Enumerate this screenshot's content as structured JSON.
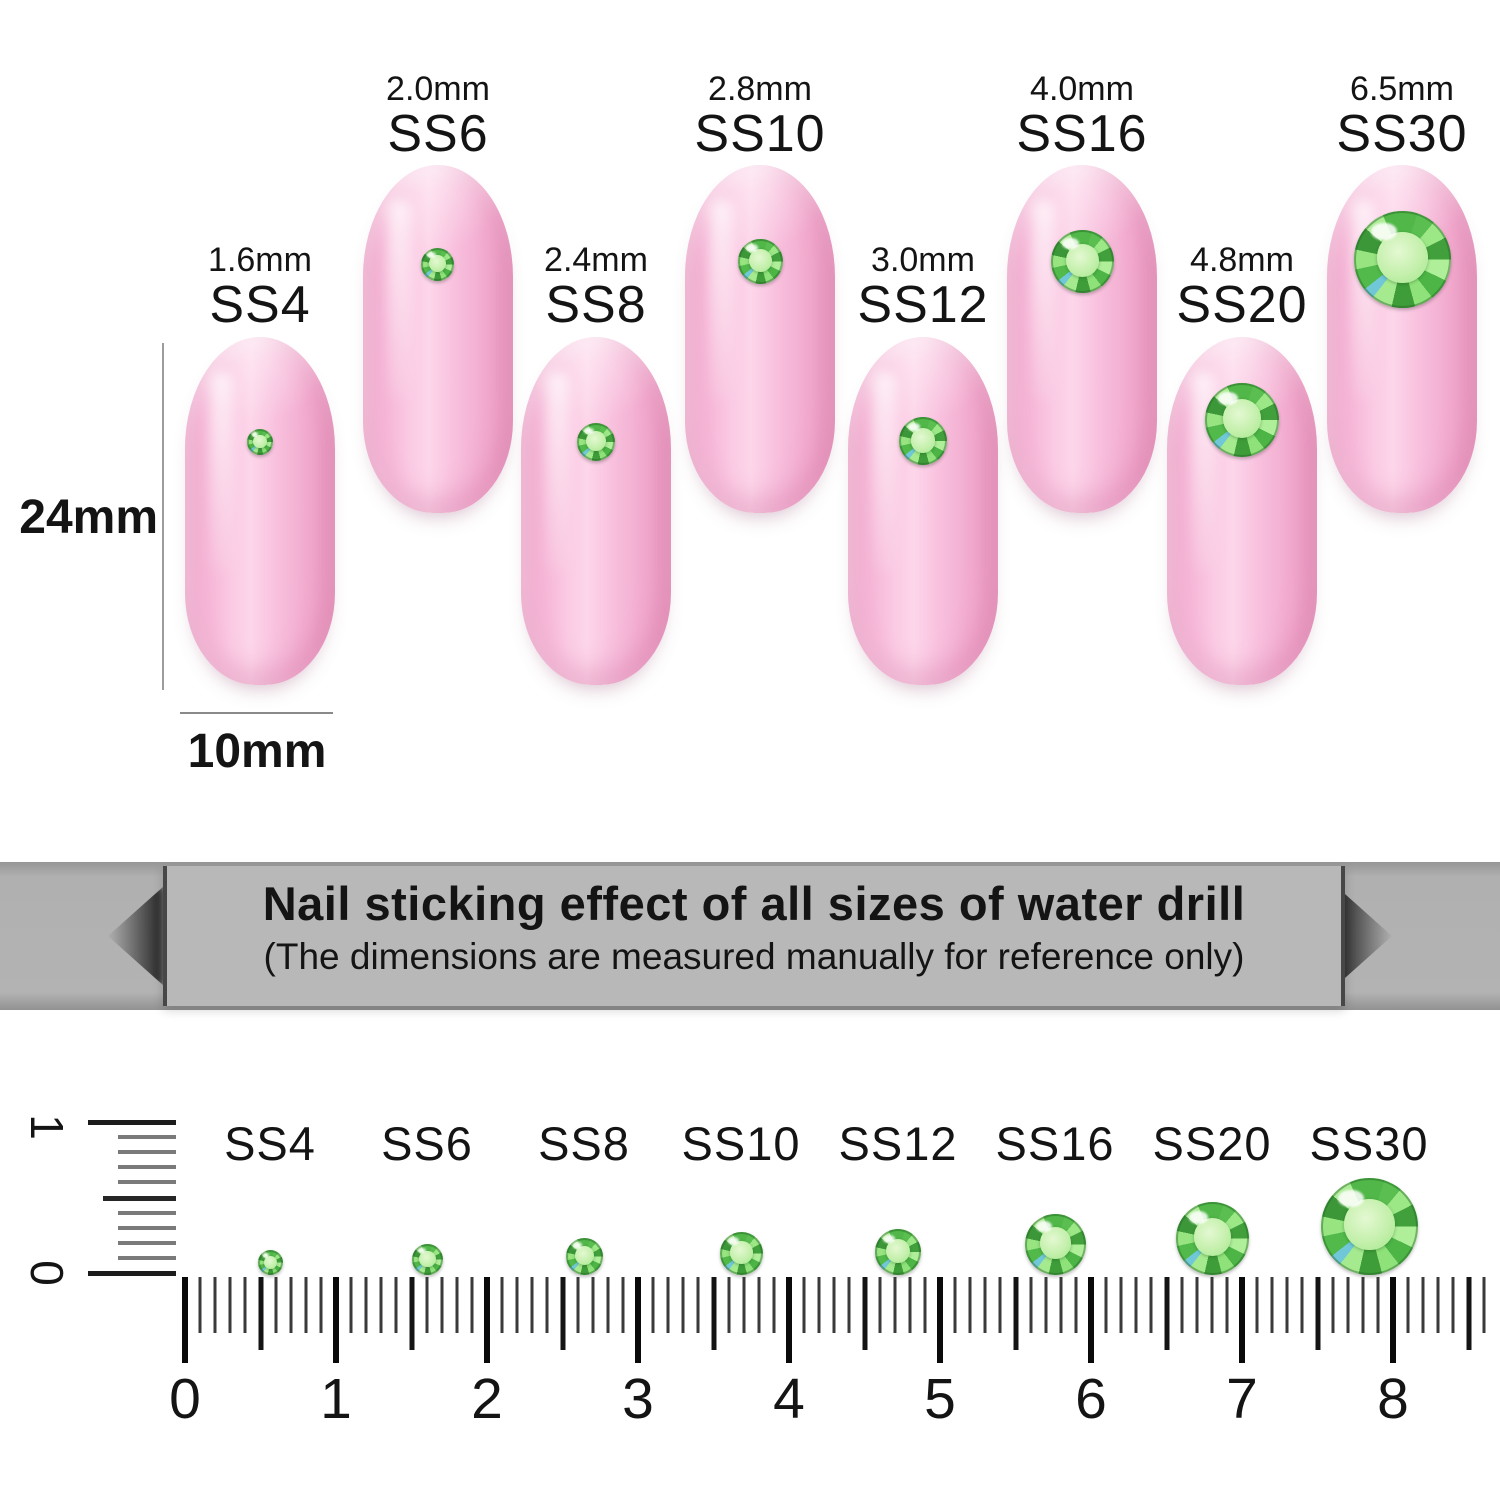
{
  "nail_section": {
    "height_label": "24mm",
    "width_label": "10mm",
    "nails": [
      {
        "size": "1.6mm",
        "name": "SS4"
      },
      {
        "size": "2.0mm",
        "name": "SS6"
      },
      {
        "size": "2.4mm",
        "name": "SS8"
      },
      {
        "size": "2.8mm",
        "name": "SS10"
      },
      {
        "size": "3.0mm",
        "name": "SS12"
      },
      {
        "size": "4.0mm",
        "name": "SS16"
      },
      {
        "size": "4.8mm",
        "name": "SS20"
      },
      {
        "size": "6.5mm",
        "name": "SS30"
      }
    ]
  },
  "banner": {
    "title": "Nail sticking effect of all sizes of water drill",
    "subtitle": "(The dimensions are measured manually for reference only)"
  },
  "ruler_section": {
    "size_labels": [
      "SS4",
      "SS6",
      "SS8",
      "SS10",
      "SS12",
      "SS16",
      "SS20",
      "SS30"
    ],
    "tick_numbers": [
      "0",
      "1",
      "2",
      "3",
      "4",
      "5",
      "6",
      "7",
      "8"
    ],
    "vertical_top_number": "1",
    "vertical_bottom_number": "0"
  },
  "colors": {
    "nail_pink": "#f8bcdb",
    "stone_green": "#6fcf5e",
    "banner_gray": "#b5b5b5"
  }
}
